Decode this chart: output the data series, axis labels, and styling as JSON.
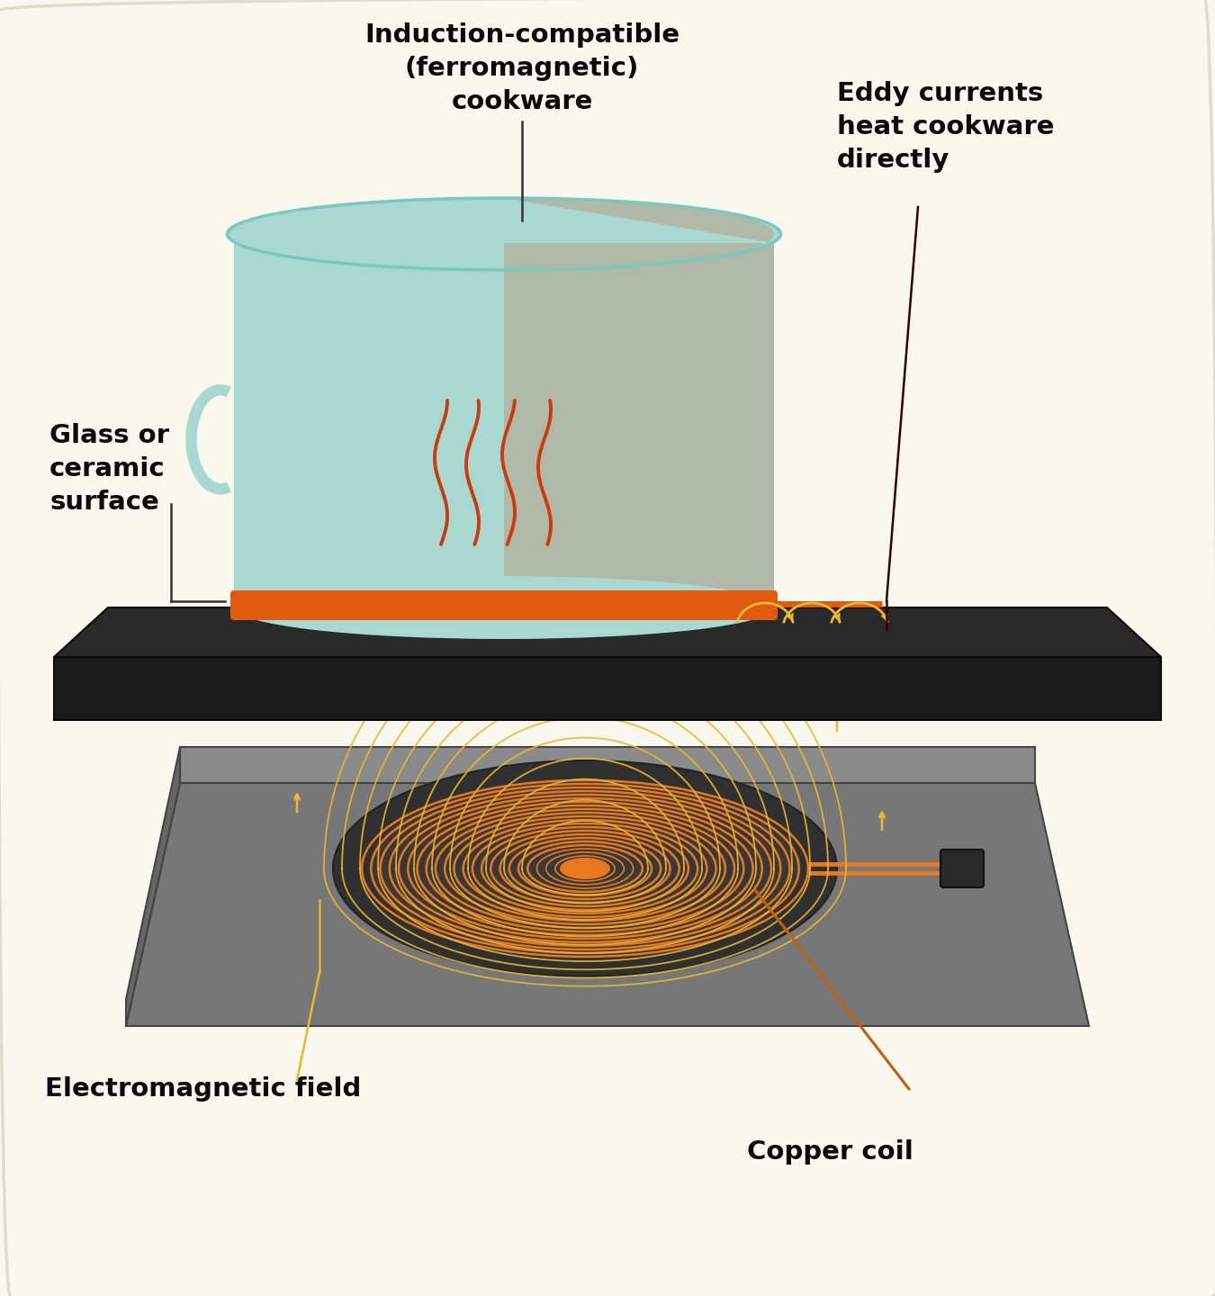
{
  "bg_color": "#F9F8EE",
  "labels": {
    "cookware": "Induction-compatible\n(ferromagnetic)\ncookware",
    "eddy": "Eddy currents\nheat cookware\ndirectly",
    "glass": "Glass or\nceramic\nsurface",
    "em_field": "Electromagnetic field",
    "copper_coil": "Copper coil"
  },
  "colors": {
    "cookware_body": "#A8D8D0",
    "cookware_body_dark": "#88C0B8",
    "cookware_inner": "#B0B8A8",
    "cookware_bottom_orange": "#E05A10",
    "cooktop_top": "#2A2A2A",
    "cooktop_side": "#1A1A1A",
    "stove_top": "#8A8A8A",
    "stove_side": "#666666",
    "stove_front": "#777777",
    "coil_orange": "#E87820",
    "coil_dark_base": "#404040",
    "coil_shadow": "#303030",
    "em_yellow": "#E8B830",
    "heat_orange": "#CC3A10",
    "connector_dark": "#2A2A2A",
    "text_color": "#0A0A0A",
    "line_dark": "#330000",
    "line_gold": "#CC9900"
  }
}
